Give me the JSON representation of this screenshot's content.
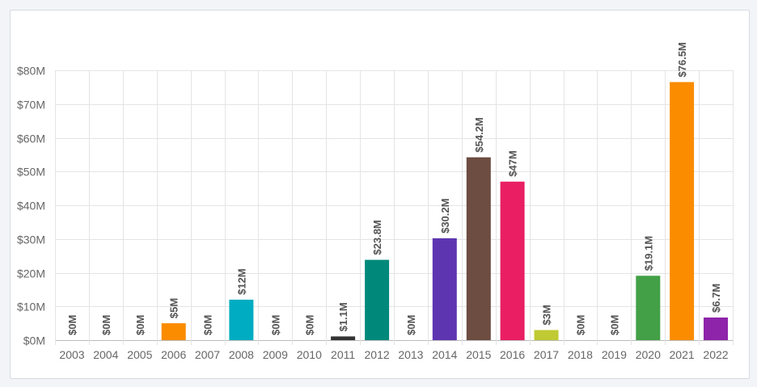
{
  "chart_data": {
    "type": "bar",
    "title": "",
    "xlabel": "",
    "ylabel": "",
    "ylim": [
      0,
      80
    ],
    "y_ticks": [
      0,
      10,
      20,
      30,
      40,
      50,
      60,
      70,
      80
    ],
    "y_tick_labels": [
      "$0M",
      "$10M",
      "$20M",
      "$30M",
      "$40M",
      "$50M",
      "$60M",
      "$70M",
      "$80M"
    ],
    "grid": true,
    "legend": "none",
    "categories": [
      "2003",
      "2004",
      "2005",
      "2006",
      "2007",
      "2008",
      "2009",
      "2010",
      "2011",
      "2012",
      "2013",
      "2014",
      "2015",
      "2016",
      "2017",
      "2018",
      "2019",
      "2020",
      "2021",
      "2022"
    ],
    "values": [
      0,
      0,
      0,
      5,
      0,
      12,
      0,
      0,
      1.1,
      23.8,
      0,
      30.2,
      54.2,
      47,
      3,
      0,
      0,
      19.1,
      76.5,
      6.7
    ],
    "labels": [
      "$0M",
      "$0M",
      "$0M",
      "$5M",
      "$0M",
      "$12M",
      "$0M",
      "$0M",
      "$1.1M",
      "$23.8M",
      "$0M",
      "$30.2M",
      "$54.2M",
      "$47M",
      "$3M",
      "$0M",
      "$0M",
      "$19.1M",
      "$76.5M",
      "$6.7M"
    ],
    "colors": [
      "#cccccc",
      "#cccccc",
      "#cccccc",
      "#fb8c00",
      "#cccccc",
      "#00acc1",
      "#cccccc",
      "#cccccc",
      "#333333",
      "#00897b",
      "#cccccc",
      "#5e35b1",
      "#6d4c41",
      "#e91e63",
      "#c0ca33",
      "#cccccc",
      "#cccccc",
      "#43a047",
      "#fb8c00",
      "#8e24aa"
    ]
  }
}
